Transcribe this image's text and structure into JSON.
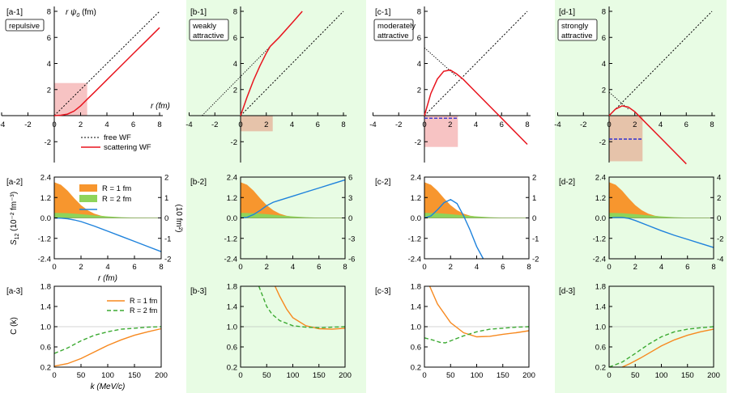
{
  "columns": [
    {
      "id": "a",
      "label1": "[a-1]",
      "label2": "[a-2]",
      "label3": "[a-3]",
      "box": [
        "repulsive"
      ],
      "shaded": false
    },
    {
      "id": "b",
      "label1": "[b-1]",
      "label2": "[b-2]",
      "label3": "[b-3]",
      "box": [
        "weakly",
        "attractive"
      ],
      "shaded": true
    },
    {
      "id": "c",
      "label1": "[c-1]",
      "label2": "[c-2]",
      "label3": "[c-3]",
      "box": [
        "moderately",
        "attractive"
      ],
      "shaded": false
    },
    {
      "id": "d",
      "label1": "[d-1]",
      "label2": "[d-2]",
      "label3": "[d-3]",
      "box": [
        "strongly",
        "attractive"
      ],
      "shaded": true
    }
  ],
  "colors": {
    "shade": "#e8fce4",
    "scattering": "#e8141e",
    "free": "#000000",
    "R1": "#f7891f",
    "R2": "#3caa32",
    "S12fill_R1": "#f7962e",
    "S12fill_R2": "#8ed45a",
    "integral": "#1e82dc",
    "dashed_level": "#3030d0",
    "rect_pink": "#f6b8b8",
    "rect_tan": "#e5b9a0"
  },
  "row1": {
    "y_axis_label_text": "r ψ",
    "y_axis_label_sub": "0",
    "y_axis_label_unit": " (fm)",
    "x_axis_label": "r (fm)",
    "xticks": [
      "-4",
      "-2",
      "0",
      "2",
      "4",
      "6",
      "8"
    ],
    "yticks": [
      "-2",
      "2",
      "4",
      "6",
      "8"
    ],
    "legend": {
      "free": "free WF",
      "scattering": "scattering WF"
    }
  },
  "row2": {
    "y_left_label_main": "S",
    "y_left_label_sub": "12",
    "y_left_label_unit": " (10⁻² fm⁻³)",
    "y_right_label": "(10 fm²)",
    "yticks_left": [
      "2.4",
      "1.2",
      "0.0",
      "-1.2",
      "-2.4"
    ],
    "yticks_right_ac": [
      "2",
      "1",
      "0",
      "-1",
      "-2"
    ],
    "yticks_right_b": [
      "6",
      "3",
      "0",
      "-3",
      "-6"
    ],
    "yticks_right_d": [
      "4",
      "2",
      "0",
      "-2",
      "-4"
    ],
    "xticks": [
      "0",
      "2",
      "4",
      "6",
      "8"
    ],
    "x_axis_label": "r (fm)",
    "legend": {
      "R1": "R = 1 fm",
      "R2": "R = 2 fm",
      "integral": ""
    }
  },
  "row3": {
    "y_axis_label": "C (k)",
    "x_axis_label": "k (MeV/c)",
    "yticks": [
      "1.8",
      "1.4",
      "1.0",
      "0.6",
      "0.2"
    ],
    "xticks": [
      "0",
      "50",
      "100",
      "150",
      "200"
    ],
    "legend": {
      "R1": "R = 1 fm",
      "R2": "R = 2 fm"
    }
  },
  "chart_data": [
    {
      "type": "line",
      "title": "[a-1] repulsive",
      "xlabel": "r (fm)",
      "ylabel": "r ψ0 (fm)",
      "xlim": [
        -4,
        8
      ],
      "ylim": [
        -4,
        8
      ],
      "series": [
        {
          "name": "free WF",
          "x": [
            0,
            8
          ],
          "y": [
            0,
            8
          ]
        },
        {
          "name": "scattering WF",
          "x": [
            0,
            0.5,
            1,
            1.5,
            2,
            2.5,
            3,
            4,
            5,
            6,
            7,
            8
          ],
          "y": [
            0,
            0.03,
            0.12,
            0.35,
            0.75,
            1.25,
            1.75,
            2.75,
            3.75,
            4.75,
            5.75,
            6.75
          ]
        }
      ],
      "rect": {
        "x": [
          0,
          2.5
        ],
        "y": [
          0,
          2.5
        ]
      }
    },
    {
      "type": "line",
      "title": "[b-1] weakly attractive",
      "xlabel": "r (fm)",
      "ylabel": "r ψ0 (fm)",
      "xlim": [
        -4,
        8
      ],
      "ylim": [
        -4,
        8
      ],
      "series": [
        {
          "name": "free WF",
          "x": [
            0,
            8
          ],
          "y": [
            0,
            8
          ]
        },
        {
          "name": "scattering WF",
          "x": [
            0,
            0.5,
            1,
            1.5,
            2,
            2.3,
            3,
            4,
            4.8
          ],
          "y": [
            0,
            1.4,
            2.7,
            3.8,
            4.8,
            5.3,
            6.0,
            7.1,
            8
          ]
        }
      ],
      "asymptote": {
        "x": [
          -3,
          2.3
        ],
        "y": [
          0,
          5.3
        ]
      },
      "rect": {
        "x": [
          0,
          2.5
        ],
        "y": [
          -1.2,
          0
        ]
      }
    },
    {
      "type": "line",
      "title": "[c-1] moderately attractive",
      "xlabel": "r (fm)",
      "ylabel": "r ψ0 (fm)",
      "xlim": [
        -4,
        8
      ],
      "ylim": [
        -4,
        8
      ],
      "series": [
        {
          "name": "free WF",
          "x": [
            0,
            8
          ],
          "y": [
            0,
            8
          ]
        },
        {
          "name": "scattering WF",
          "x": [
            0,
            0.5,
            1,
            1.5,
            2,
            2.5,
            3,
            4,
            5,
            6,
            7,
            8
          ],
          "y": [
            0,
            1.7,
            2.8,
            3.4,
            3.5,
            3.2,
            2.8,
            1.8,
            0.8,
            -0.2,
            -1.2,
            -2.2
          ]
        }
      ],
      "asymptote": {
        "x": [
          0,
          2.5
        ],
        "y": [
          5.2,
          3.0
        ]
      },
      "rect": {
        "x": [
          0,
          2.6
        ],
        "y": [
          -2.4,
          0
        ]
      },
      "level": -0.2
    },
    {
      "type": "line",
      "title": "[d-1] strongly attractive",
      "xlabel": "r (fm)",
      "ylabel": "r ψ0 (fm)",
      "xlim": [
        -4,
        8
      ],
      "ylim": [
        -4,
        8
      ],
      "series": [
        {
          "name": "free WF",
          "x": [
            0,
            8
          ],
          "y": [
            0,
            8
          ]
        },
        {
          "name": "scattering WF",
          "x": [
            0,
            0.5,
            1,
            1.5,
            2,
            3,
            4,
            5,
            6
          ],
          "y": [
            0,
            0.5,
            0.75,
            0.65,
            0.3,
            -0.7,
            -1.7,
            -2.7,
            -3.7
          ]
        }
      ],
      "asymptote": {
        "x": [
          0,
          1.5
        ],
        "y": [
          1.8,
          0.5
        ]
      },
      "rect": {
        "x": [
          0,
          2.6
        ],
        "y": [
          -3.5,
          0
        ]
      },
      "level": -1.8
    },
    {
      "type": "area",
      "title": "[a-2]",
      "xlabel": "r (fm)",
      "xlim": [
        0,
        8
      ],
      "ylim": [
        -2.4,
        2.4
      ],
      "y2lim": [
        -2,
        2
      ],
      "series": [
        {
          "name": "R = 1 fm",
          "x": [
            0,
            0.5,
            1,
            1.5,
            2,
            2.5,
            3,
            3.5,
            4,
            5,
            6,
            8
          ],
          "y": [
            2.1,
            1.95,
            1.6,
            1.15,
            0.75,
            0.45,
            0.25,
            0.13,
            0.07,
            0.02,
            0.0,
            0.0
          ]
        },
        {
          "name": "R = 2 fm",
          "x": [
            0,
            1,
            2,
            3,
            4,
            5,
            6,
            8
          ],
          "y": [
            0.3,
            0.28,
            0.22,
            0.15,
            0.09,
            0.04,
            0.02,
            0.0
          ]
        },
        {
          "name": "integral",
          "axis": "right",
          "x": [
            0,
            0.5,
            1,
            1.5,
            2,
            3,
            4,
            5,
            6,
            7,
            8
          ],
          "y": [
            0,
            -0.01,
            -0.04,
            -0.1,
            -0.18,
            -0.4,
            -0.65,
            -0.9,
            -1.15,
            -1.4,
            -1.65
          ]
        }
      ]
    },
    {
      "type": "area",
      "title": "[b-2]",
      "xlabel": "r (fm)",
      "xlim": [
        0,
        8
      ],
      "ylim": [
        -2.4,
        2.4
      ],
      "y2lim": [
        -6,
        6
      ],
      "series": [
        {
          "name": "R = 1 fm",
          "x": [
            0,
            0.5,
            1,
            1.5,
            2,
            2.5,
            3,
            3.5,
            4,
            5,
            6,
            8
          ],
          "y": [
            2.1,
            1.95,
            1.6,
            1.15,
            0.75,
            0.45,
            0.25,
            0.13,
            0.07,
            0.02,
            0.0,
            0.0
          ]
        },
        {
          "name": "R = 2 fm",
          "x": [
            0,
            1,
            2,
            3,
            4,
            5,
            6,
            8
          ],
          "y": [
            0.3,
            0.28,
            0.22,
            0.15,
            0.09,
            0.04,
            0.02,
            0.0
          ]
        },
        {
          "name": "integral",
          "axis": "right",
          "x": [
            0,
            0.5,
            1,
            1.5,
            2,
            2.5,
            3,
            4,
            5,
            6,
            7,
            8
          ],
          "y": [
            0,
            0.1,
            0.5,
            1.1,
            1.8,
            2.3,
            2.6,
            3.2,
            3.8,
            4.4,
            5.0,
            5.6
          ]
        }
      ]
    },
    {
      "type": "area",
      "title": "[c-2]",
      "xlabel": "r (fm)",
      "xlim": [
        0,
        8
      ],
      "ylim": [
        -2.4,
        2.4
      ],
      "y2lim": [
        -2,
        2
      ],
      "series": [
        {
          "name": "R = 1 fm",
          "x": [
            0,
            0.5,
            1,
            1.5,
            2,
            2.5,
            3,
            3.5,
            4,
            5,
            6,
            8
          ],
          "y": [
            2.1,
            1.95,
            1.6,
            1.15,
            0.75,
            0.45,
            0.25,
            0.13,
            0.07,
            0.02,
            0.0,
            0.0
          ]
        },
        {
          "name": "R = 2 fm",
          "x": [
            0,
            1,
            2,
            3,
            4,
            5,
            6,
            8
          ],
          "y": [
            0.3,
            0.28,
            0.22,
            0.15,
            0.09,
            0.04,
            0.02,
            0.0
          ]
        },
        {
          "name": "integral",
          "axis": "right",
          "x": [
            0,
            0.5,
            1,
            1.5,
            2,
            2.5,
            3,
            3.5,
            4,
            4.5
          ],
          "y": [
            0,
            0.1,
            0.4,
            0.75,
            0.9,
            0.7,
            0.1,
            -0.6,
            -1.4,
            -2.05
          ]
        }
      ]
    },
    {
      "type": "area",
      "title": "[d-2]",
      "xlabel": "r (fm)",
      "xlim": [
        0,
        8
      ],
      "ylim": [
        -2.4,
        2.4
      ],
      "y2lim": [
        -4,
        4
      ],
      "series": [
        {
          "name": "R = 1 fm",
          "x": [
            0,
            0.5,
            1,
            1.5,
            2,
            2.5,
            3,
            3.5,
            4,
            5,
            6,
            8
          ],
          "y": [
            2.1,
            1.95,
            1.6,
            1.15,
            0.75,
            0.45,
            0.25,
            0.13,
            0.07,
            0.02,
            0.0,
            0.0
          ]
        },
        {
          "name": "R = 2 fm",
          "x": [
            0,
            1,
            2,
            3,
            4,
            5,
            6,
            8
          ],
          "y": [
            0.3,
            0.28,
            0.22,
            0.15,
            0.09,
            0.04,
            0.02,
            0.0
          ]
        },
        {
          "name": "integral",
          "axis": "right",
          "x": [
            0,
            0.5,
            1,
            1.5,
            2,
            3,
            4,
            5,
            6,
            7,
            8
          ],
          "y": [
            0,
            0.05,
            0.05,
            -0.05,
            -0.25,
            -0.75,
            -1.25,
            -1.7,
            -2.1,
            -2.5,
            -2.9
          ]
        }
      ]
    },
    {
      "type": "line",
      "title": "[a-3]",
      "xlabel": "k (MeV/c)",
      "ylabel": "C (k)",
      "xlim": [
        0,
        200
      ],
      "ylim": [
        0.2,
        1.8
      ],
      "series": [
        {
          "name": "R = 1 fm",
          "x": [
            0,
            25,
            50,
            75,
            100,
            125,
            150,
            175,
            200
          ],
          "y": [
            0.22,
            0.27,
            0.37,
            0.5,
            0.63,
            0.74,
            0.83,
            0.9,
            0.96
          ]
        },
        {
          "name": "R = 2 fm",
          "x": [
            0,
            25,
            50,
            75,
            100,
            125,
            150,
            175,
            200
          ],
          "y": [
            0.47,
            0.58,
            0.72,
            0.83,
            0.9,
            0.95,
            0.97,
            0.99,
            1.0
          ]
        }
      ]
    },
    {
      "type": "line",
      "title": "[b-3]",
      "xlabel": "k (MeV/c)",
      "ylabel": "C (k)",
      "xlim": [
        0,
        200
      ],
      "ylim": [
        0.2,
        1.8
      ],
      "series": [
        {
          "name": "R = 1 fm",
          "x": [
            66,
            75,
            88,
            100,
            125,
            150,
            175,
            200
          ],
          "y": [
            1.8,
            1.6,
            1.35,
            1.18,
            1.02,
            0.96,
            0.95,
            0.97
          ]
        },
        {
          "name": "R = 2 fm",
          "x": [
            35,
            50,
            60,
            75,
            100,
            125,
            150,
            175,
            200
          ],
          "y": [
            1.8,
            1.4,
            1.25,
            1.12,
            1.02,
            0.99,
            0.98,
            0.99,
            1.0
          ]
        }
      ]
    },
    {
      "type": "line",
      "title": "[c-3]",
      "xlabel": "k (MeV/c)",
      "ylabel": "C (k)",
      "xlim": [
        0,
        200
      ],
      "ylim": [
        0.2,
        1.8
      ],
      "series": [
        {
          "name": "R = 1 fm",
          "x": [
            10,
            25,
            50,
            75,
            100,
            125,
            150,
            175,
            200
          ],
          "y": [
            1.8,
            1.45,
            1.08,
            0.88,
            0.8,
            0.81,
            0.85,
            0.88,
            0.92
          ]
        },
        {
          "name": "R = 2 fm",
          "x": [
            0,
            15,
            30,
            40,
            50,
            75,
            100,
            125,
            150,
            175,
            200
          ],
          "y": [
            0.78,
            0.74,
            0.69,
            0.68,
            0.72,
            0.82,
            0.9,
            0.95,
            0.97,
            0.99,
            1.0
          ]
        }
      ]
    },
    {
      "type": "line",
      "title": "[d-3]",
      "xlabel": "k (MeV/c)",
      "ylabel": "C (k)",
      "xlim": [
        0,
        200
      ],
      "ylim": [
        0.2,
        1.8
      ],
      "series": [
        {
          "name": "R = 1 fm",
          "x": [
            25,
            40,
            60,
            80,
            100,
            125,
            150,
            175,
            200
          ],
          "y": [
            0.2,
            0.27,
            0.38,
            0.5,
            0.62,
            0.74,
            0.83,
            0.9,
            0.95
          ]
        },
        {
          "name": "R = 2 fm",
          "x": [
            0,
            25,
            50,
            75,
            100,
            125,
            150,
            175,
            200
          ],
          "y": [
            0.2,
            0.3,
            0.47,
            0.65,
            0.8,
            0.9,
            0.95,
            0.98,
            1.0
          ]
        }
      ]
    }
  ]
}
